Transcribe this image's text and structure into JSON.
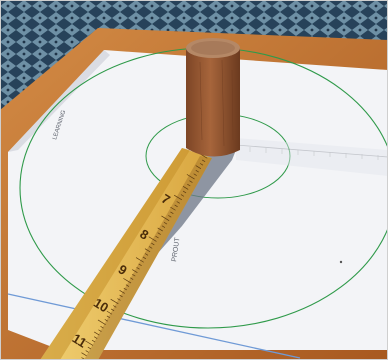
{
  "photo": {
    "colors": {
      "carpet_dark": "#27425a",
      "carpet_light": "#7fa4b8",
      "frame_wood": "#b8682a",
      "frame_wood_light": "#d38b45",
      "paper": "#f3f4f7",
      "paper_shadow": "#c9ccd6",
      "circle_line": "#2f9a4a",
      "blue_line": "#6f9ad6",
      "ruler_yellow": "#e8c15a",
      "ruler_dark": "#c48f2a",
      "dowel_wood": "#9b5c36",
      "dowel_top": "#b58866",
      "shadow": "#6c7586"
    }
  },
  "labels": {
    "outer_circle_label": "LEARNING",
    "inner_label": "PROUT"
  },
  "ruler": {
    "numbers": [
      "7",
      "8",
      "9",
      "10",
      "11"
    ]
  }
}
